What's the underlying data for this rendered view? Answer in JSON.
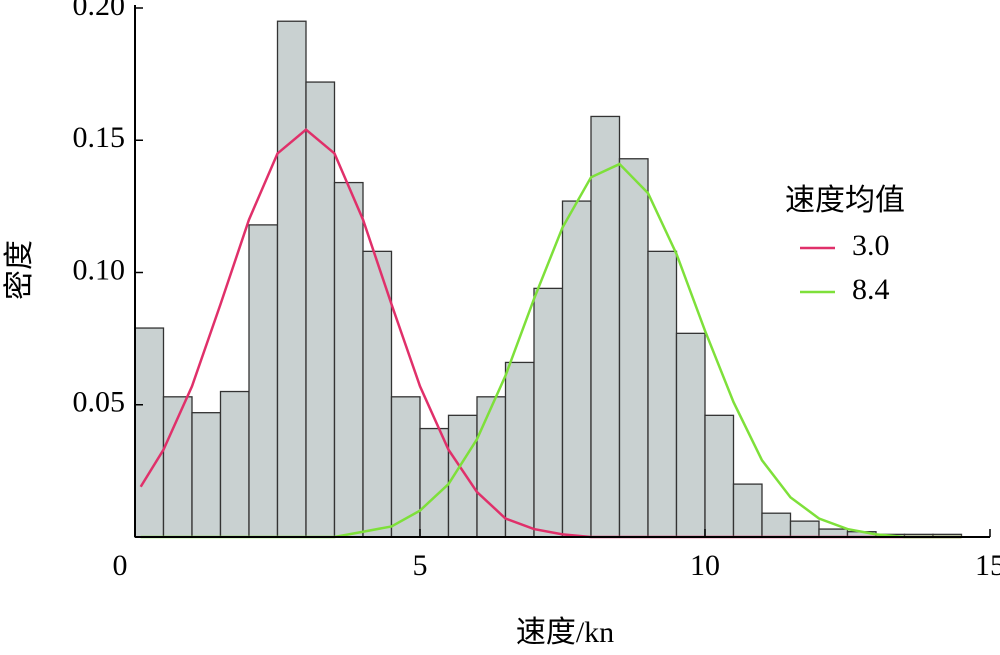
{
  "chart_data": {
    "type": "histogram",
    "x_label": "速度/kn",
    "y_label": "密度",
    "bins": [
      0,
      0.5,
      1,
      1.5,
      2,
      2.5,
      3,
      3.5,
      4,
      4.5,
      5,
      5.5,
      6,
      6.5,
      7,
      7.5,
      8,
      8.5,
      9,
      9.5,
      10,
      10.5,
      11,
      11.5,
      12,
      12.5,
      13,
      13.5,
      14,
      14.5
    ],
    "values": [
      0.079,
      0.053,
      0.047,
      0.055,
      0.118,
      0.195,
      0.172,
      0.134,
      0.108,
      0.053,
      0.041,
      0.046,
      0.053,
      0.066,
      0.094,
      0.127,
      0.159,
      0.143,
      0.108,
      0.077,
      0.046,
      0.02,
      0.009,
      0.006,
      0.003,
      0.002,
      0.001,
      0.001,
      0.001
    ],
    "color": "#c9d1d1",
    "legend_title": "速度均值",
    "curves": {
      "x": [
        0.1,
        0.5,
        1,
        1.5,
        2,
        2.5,
        3,
        3.5,
        4,
        4.5,
        5,
        5.5,
        6,
        6.5,
        7,
        7.5,
        8,
        8.5,
        9,
        9.5,
        10,
        10.5,
        11,
        11.5,
        12,
        12.5,
        13,
        13.5,
        14,
        14.5
      ],
      "series": [
        {
          "name": "3.0",
          "color": "#e0306a",
          "values": [
            0.019,
            0.033,
            0.057,
            0.088,
            0.12,
            0.145,
            0.154,
            0.145,
            0.12,
            0.088,
            0.057,
            0.033,
            0.017,
            0.007,
            0.003,
            0.001,
            0,
            0,
            0,
            0,
            0,
            0,
            0,
            0,
            0,
            0,
            0,
            0,
            0,
            0
          ]
        },
        {
          "name": "8.4",
          "color": "#7ee03a",
          "values": [
            0,
            0,
            0,
            0,
            0,
            0,
            0,
            0,
            0.002,
            0.004,
            0.01,
            0.02,
            0.037,
            0.061,
            0.09,
            0.117,
            0.136,
            0.141,
            0.13,
            0.107,
            0.078,
            0.051,
            0.029,
            0.015,
            0.007,
            0.003,
            0.001,
            0,
            0,
            0
          ]
        }
      ]
    },
    "xlim": [
      0,
      15
    ],
    "ylim": [
      0,
      0.2
    ],
    "xticks": [
      0,
      5,
      10,
      15
    ],
    "yticks": [
      0.05,
      {
        "value": 0.1,
        "label": "0.10"
      },
      0.15,
      {
        "value": 0.2,
        "label": "0.20"
      }
    ]
  }
}
